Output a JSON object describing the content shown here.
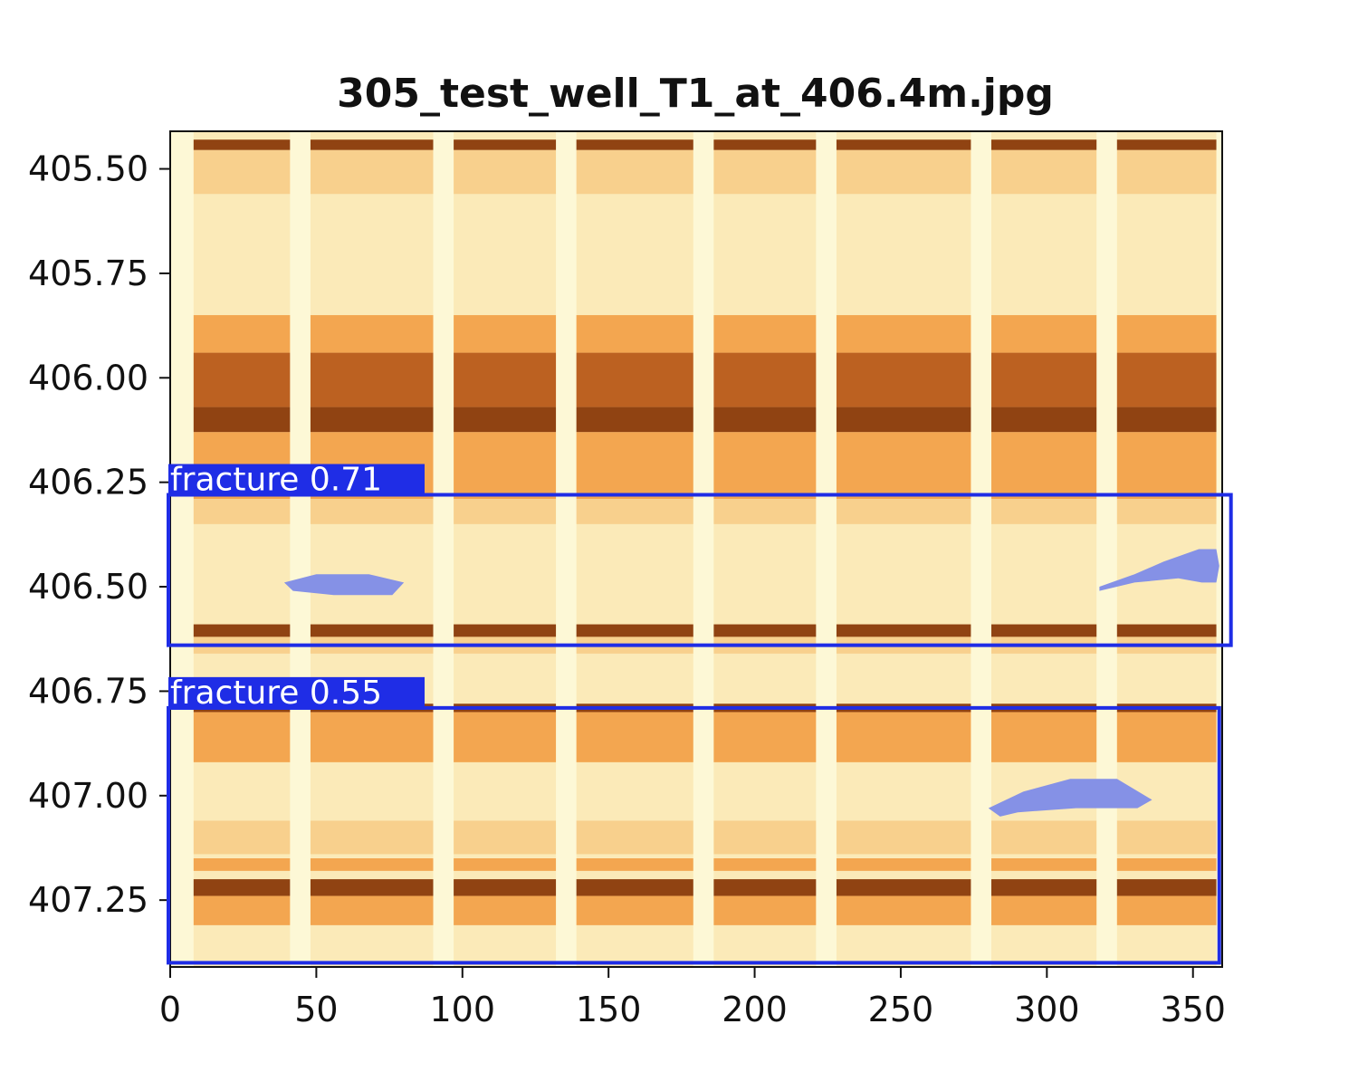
{
  "chart_data": {
    "type": "heatmap",
    "title": "305_test_well_T1_at_406.4m.jpg",
    "xlabel": "",
    "ylabel": "",
    "xlim": [
      0,
      360
    ],
    "ylim": [
      405.41,
      407.41
    ],
    "y_inverted": true,
    "xticks": [
      0,
      50,
      100,
      150,
      200,
      250,
      300,
      350
    ],
    "xtick_labels": [
      "0",
      "50",
      "100",
      "150",
      "200",
      "250",
      "300",
      "350"
    ],
    "yticks": [
      405.5,
      405.75,
      406.0,
      406.25,
      406.5,
      406.75,
      407.0,
      407.25
    ],
    "ytick_labels": [
      "405.50",
      "405.75",
      "406.00",
      "406.25",
      "406.50",
      "406.75",
      "407.00",
      "407.25"
    ],
    "grid": false,
    "image": {
      "description": "borehole image log, orange colormap",
      "colors": {
        "light": "#fdf8d6",
        "mid": "#f2a24a",
        "dark": "#8a3a08"
      },
      "pad_gaps_x": [
        [
          0,
          8
        ],
        [
          41,
          48
        ],
        [
          90,
          97
        ],
        [
          132,
          139
        ],
        [
          179,
          186
        ],
        [
          221,
          228
        ],
        [
          274,
          281
        ],
        [
          317,
          324
        ]
      ],
      "bands": [
        {
          "y0": 405.43,
          "y1": 405.455,
          "level": "dark"
        },
        {
          "y0": 405.455,
          "y1": 405.56,
          "level": "mid-light"
        },
        {
          "y0": 405.85,
          "y1": 405.94,
          "level": "mid"
        },
        {
          "y0": 405.94,
          "y1": 406.07,
          "level": "dark-mid"
        },
        {
          "y0": 406.07,
          "y1": 406.13,
          "level": "dark"
        },
        {
          "y0": 406.13,
          "y1": 406.29,
          "level": "mid"
        },
        {
          "y0": 406.29,
          "y1": 406.35,
          "level": "mid-light"
        },
        {
          "y0": 406.59,
          "y1": 406.62,
          "level": "dark"
        },
        {
          "y0": 406.62,
          "y1": 406.66,
          "level": "mid-light"
        },
        {
          "y0": 406.78,
          "y1": 406.8,
          "level": "dark"
        },
        {
          "y0": 406.8,
          "y1": 406.92,
          "level": "mid"
        },
        {
          "y0": 407.06,
          "y1": 407.14,
          "level": "mid-light"
        },
        {
          "y0": 407.15,
          "y1": 407.18,
          "level": "mid"
        },
        {
          "y0": 407.2,
          "y1": 407.24,
          "level": "dark"
        },
        {
          "y0": 407.24,
          "y1": 407.31,
          "level": "mid"
        }
      ]
    },
    "detections": [
      {
        "label": "fracture",
        "score": "0.71",
        "x0": 0,
        "x1": 363,
        "y0": 406.28,
        "y1": 406.64
      },
      {
        "label": "fracture",
        "score": "0.55",
        "x0": 0,
        "x1": 359,
        "y0": 406.79,
        "y1": 407.4
      }
    ],
    "masks": [
      {
        "points": [
          [
            39,
            406.49
          ],
          [
            50,
            406.47
          ],
          [
            68,
            406.47
          ],
          [
            80,
            406.49
          ],
          [
            76,
            406.52
          ],
          [
            56,
            406.52
          ],
          [
            42,
            406.51
          ]
        ]
      },
      {
        "points": [
          [
            318,
            406.5
          ],
          [
            330,
            406.47
          ],
          [
            340,
            406.44
          ],
          [
            352,
            406.41
          ],
          [
            358,
            406.41
          ],
          [
            359,
            406.45
          ],
          [
            358,
            406.49
          ],
          [
            353,
            406.49
          ],
          [
            345,
            406.48
          ],
          [
            330,
            406.49
          ],
          [
            318,
            406.51
          ]
        ]
      },
      {
        "points": [
          [
            280,
            407.03
          ],
          [
            292,
            406.99
          ],
          [
            308,
            406.96
          ],
          [
            324,
            406.96
          ],
          [
            336,
            407.01
          ],
          [
            331,
            407.03
          ],
          [
            310,
            407.03
          ],
          [
            290,
            407.04
          ],
          [
            284,
            407.05
          ]
        ]
      }
    ],
    "mask_color": "#8591e6",
    "box_color": "#1f2de6"
  }
}
